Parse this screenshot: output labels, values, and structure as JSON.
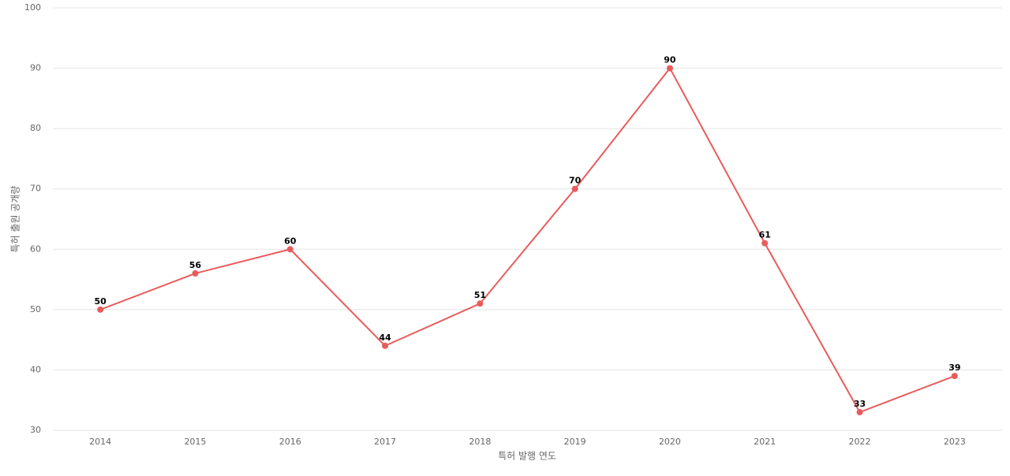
{
  "chart_data": {
    "type": "line",
    "x_label": "특허 발행 연도",
    "y_label": "특허 출원 공개량",
    "categories": [
      "2014",
      "2015",
      "2016",
      "2017",
      "2018",
      "2019",
      "2020",
      "2021",
      "2022",
      "2023"
    ],
    "values": [
      50,
      56,
      60,
      44,
      51,
      70,
      90,
      61,
      33,
      39
    ],
    "color": "#e85c5c",
    "ylim": [
      30,
      100
    ],
    "yticks": [
      30,
      40,
      50,
      60,
      70,
      80,
      90,
      100
    ],
    "grid": true
  }
}
